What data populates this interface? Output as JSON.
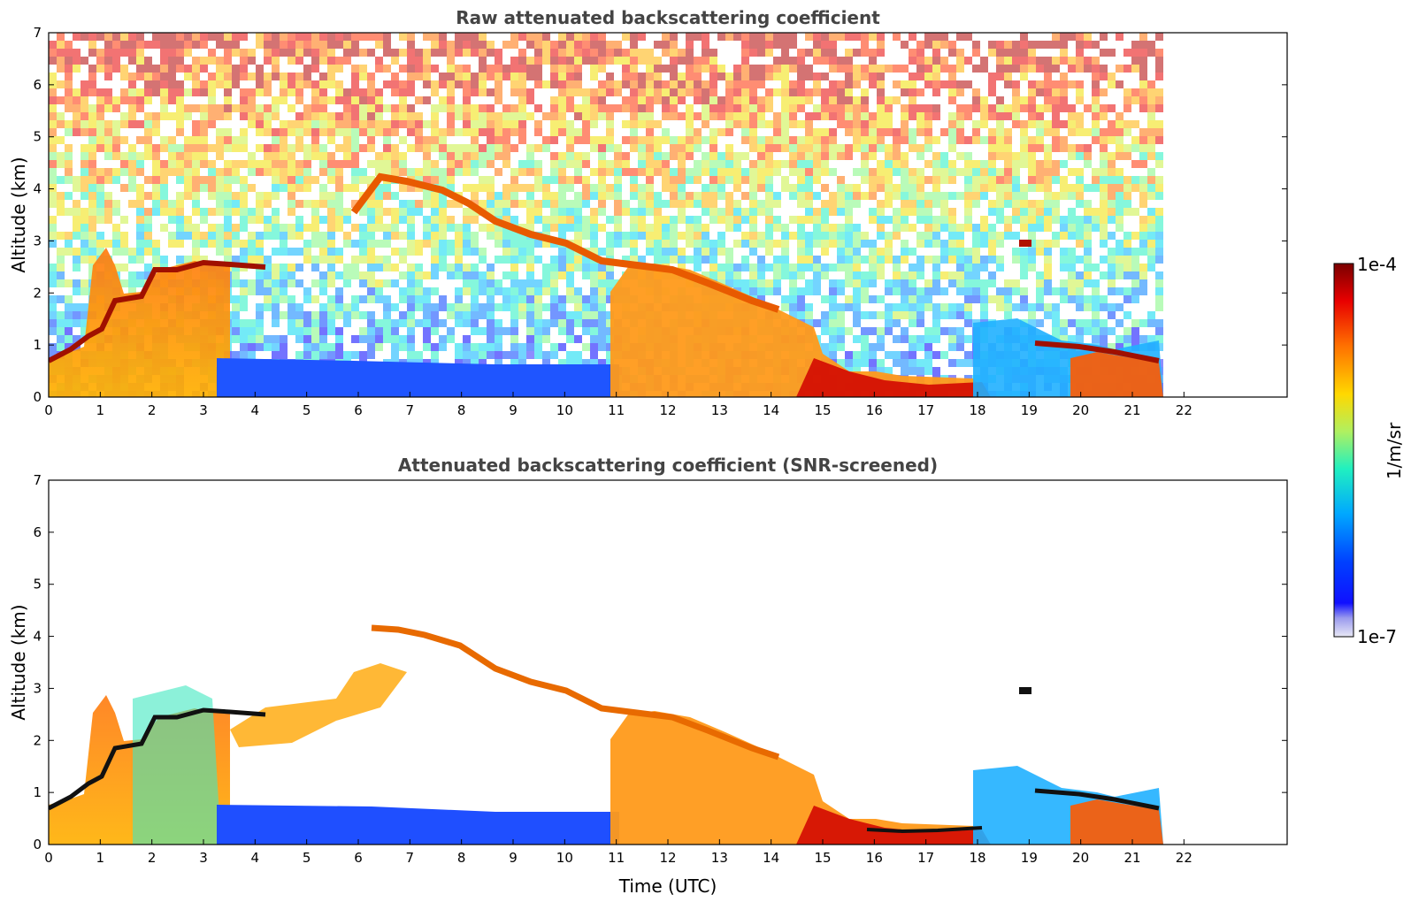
{
  "colorbar": {
    "max_label": "1e-4",
    "min_label": "1e-7",
    "unit_label": "1/m/sr",
    "colors": [
      "#e6e6f5",
      "#c0c0ef",
      "#9a9aee",
      "#6e6ef2",
      "#3030ff",
      "#0000ff",
      "#0040ff",
      "#0080ff",
      "#00b0ff",
      "#00d8f0",
      "#20f0c0",
      "#80f880",
      "#c8f040",
      "#f0e000",
      "#ffb000",
      "#ff7000",
      "#ff3000",
      "#e80000",
      "#b00000",
      "#800000"
    ]
  },
  "chart_data": [
    {
      "type": "heatmap",
      "title": "Raw attenuated backscattering coefficient",
      "ylabel": "Altitude (km)",
      "xlabel": "",
      "xlim": [
        0,
        24
      ],
      "ylim": [
        0,
        7
      ],
      "xticks": [
        0,
        1,
        2,
        3,
        4,
        5,
        6,
        7,
        8,
        9,
        10,
        11,
        12,
        13,
        14,
        15,
        16,
        17,
        18,
        19,
        20,
        21,
        22
      ],
      "yticks": [
        0,
        1,
        2,
        3,
        4,
        5,
        6,
        7
      ],
      "data_end_hour": 21.6,
      "scale": "log",
      "value_range": [
        "1e-7",
        "1e-4"
      ]
    },
    {
      "type": "heatmap",
      "title": "Attenuated backscattering coefficient (SNR-screened)",
      "ylabel": "Altitude (km)",
      "xlabel": "Time (UTC)",
      "xlim": [
        0,
        24
      ],
      "ylim": [
        0,
        7
      ],
      "xticks": [
        0,
        1,
        2,
        3,
        4,
        5,
        6,
        7,
        8,
        9,
        10,
        11,
        12,
        13,
        14,
        15,
        16,
        17,
        18,
        19,
        20,
        21,
        22
      ],
      "yticks": [
        0,
        1,
        2,
        3,
        4,
        5,
        6,
        7
      ],
      "data_end_hour": 21.6,
      "scale": "log",
      "value_range": [
        "1e-7",
        "1e-4"
      ]
    }
  ]
}
